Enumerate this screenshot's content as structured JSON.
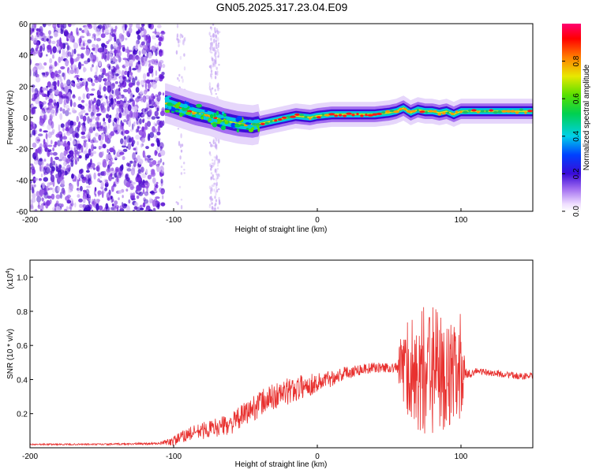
{
  "title": "GN05.2025.317.23.04.E09",
  "chart_data": [
    {
      "type": "heatmap",
      "xlabel": "Height of straight line (km)",
      "ylabel": "Frequency (Hz)",
      "xlim": [
        -200,
        150
      ],
      "ylim": [
        -60,
        60
      ],
      "xticks": [
        -200,
        -100,
        0,
        100
      ],
      "xtick_labels": [
        "-200",
        "-100",
        "0",
        "100"
      ],
      "yticks": [
        -60,
        -40,
        -20,
        0,
        20,
        40,
        60
      ],
      "ytick_labels": [
        "-60",
        "-40",
        "-20",
        "0",
        "20",
        "40",
        "60"
      ],
      "colorbar": {
        "label": "Normalized spectral amplitude",
        "range": [
          0,
          1
        ],
        "ticks": [
          0.0,
          0.2,
          0.4,
          0.6,
          0.8
        ],
        "tick_labels": [
          "0.0",
          "0.2",
          "0.4",
          "0.6",
          "0.8"
        ]
      },
      "ridge": {
        "x": [
          -105,
          -95,
          -85,
          -75,
          -65,
          -55,
          -45,
          -35,
          -25,
          -15,
          -5,
          0,
          10,
          20,
          30,
          40,
          50,
          55,
          60,
          65,
          70,
          75,
          80,
          85,
          90,
          95,
          100,
          110,
          120,
          130,
          140,
          150
        ],
        "freq": [
          9,
          6,
          3,
          1,
          -2,
          -4,
          -5,
          -3,
          -1,
          1,
          0,
          1,
          2,
          2,
          2,
          2,
          3,
          4,
          6,
          3,
          5,
          4,
          4,
          3,
          4,
          2,
          4,
          4,
          4,
          4,
          4,
          4
        ]
      }
    },
    {
      "type": "line",
      "xlabel": "Height of straight line (km)",
      "ylabel": "SNR (10 * v/v)",
      "y_scale_label": "(x10",
      "y_scale_exp": "4",
      "y_scale_close": ")",
      "xlim": [
        -200,
        150
      ],
      "ylim": [
        0,
        1.1
      ],
      "xticks": [
        -200,
        -100,
        0,
        100
      ],
      "xtick_labels": [
        "-200",
        "-100",
        "0",
        "100"
      ],
      "yticks": [
        0.2,
        0.4,
        0.6,
        0.8,
        1.0
      ],
      "ytick_labels": [
        "0.2",
        "0.4",
        "0.6",
        "0.8",
        "1.0"
      ],
      "color": "#e8312f",
      "baseline": {
        "x": [
          -200,
          -150,
          -110,
          -100,
          -90,
          -80,
          -70,
          -60,
          -50,
          -40,
          -30,
          -20,
          -10,
          0,
          10,
          20,
          30,
          40,
          50,
          55,
          58,
          60,
          65,
          70,
          75,
          80,
          85,
          90,
          95,
          100,
          103,
          110,
          120,
          130,
          140,
          150
        ],
        "y": [
          0.02,
          0.02,
          0.025,
          0.04,
          0.08,
          0.1,
          0.12,
          0.14,
          0.2,
          0.26,
          0.3,
          0.33,
          0.36,
          0.38,
          0.41,
          0.44,
          0.46,
          0.47,
          0.47,
          0.47,
          0.48,
          0.45,
          0.45,
          0.45,
          0.45,
          0.45,
          0.45,
          0.45,
          0.42,
          0.42,
          0.42,
          0.45,
          0.44,
          0.43,
          0.42,
          0.42
        ]
      },
      "noise": {
        "x": [
          -200,
          -110,
          -100,
          -80,
          -60,
          -40,
          -20,
          0,
          20,
          40,
          55,
          60,
          70,
          80,
          90,
          100,
          104,
          110,
          150
        ],
        "amp": [
          0.004,
          0.006,
          0.03,
          0.05,
          0.06,
          0.08,
          0.08,
          0.06,
          0.04,
          0.03,
          0.03,
          0.25,
          0.38,
          0.38,
          0.35,
          0.25,
          0.03,
          0.02,
          0.02
        ]
      }
    }
  ]
}
